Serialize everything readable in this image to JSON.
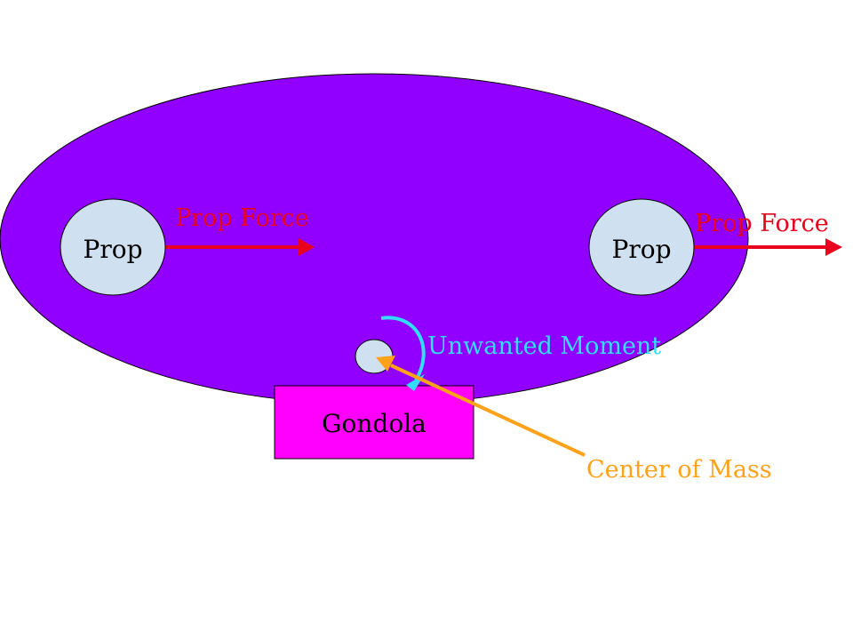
{
  "colors": {
    "blimp_body": "#9100ff",
    "prop_fill": "#cfe0f0",
    "gondola_fill": "#ff00ff",
    "force_color": "#e8001c",
    "moment_color": "#33ddff",
    "com_color": "#ffa21a",
    "outline": "#000000",
    "text_dark": "#000000"
  },
  "diagram": {
    "left_prop": {
      "label": "Prop",
      "icon": "circle"
    },
    "right_prop": {
      "label": "Prop",
      "icon": "circle"
    },
    "left_force": {
      "label": "Prop Force",
      "icon": "arrow-right"
    },
    "right_force": {
      "label": "Prop Force",
      "icon": "arrow-right"
    },
    "moment": {
      "label": "Unwanted Moment",
      "icon": "curved-arrow"
    },
    "center_of_mass": {
      "label": "Center of Mass",
      "icon": "circle"
    },
    "gondola": {
      "label": "Gondola"
    }
  }
}
